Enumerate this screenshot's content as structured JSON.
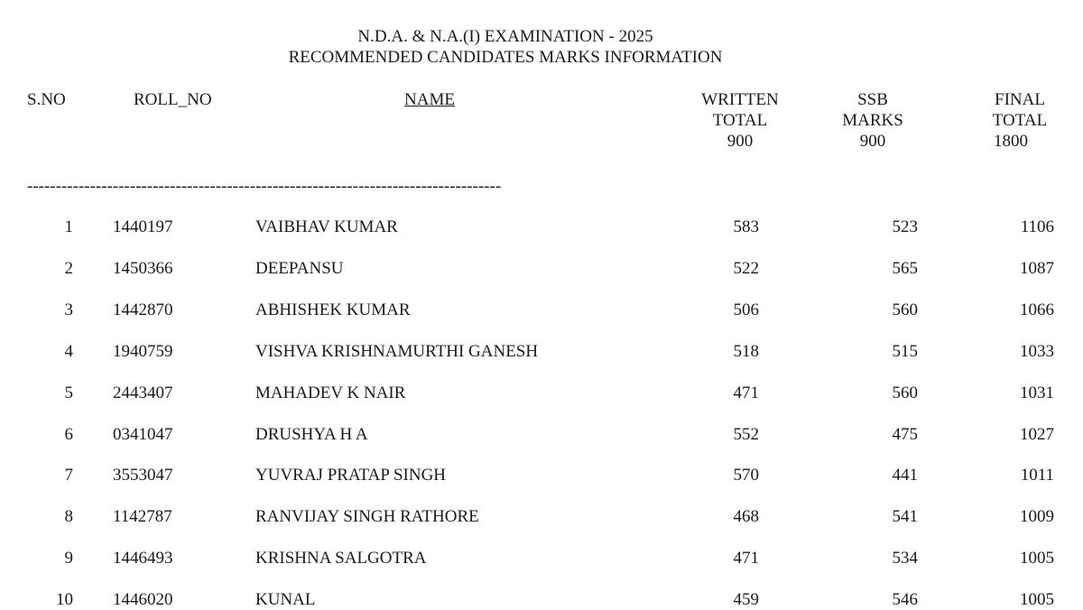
{
  "header": {
    "line1": "N.D.A. & N.A.(I) EXAMINATION - 2025",
    "line2": "RECOMMENDED CANDIDATES MARKS INFORMATION"
  },
  "columns": {
    "sno": "S.NO",
    "roll": "ROLL_NO",
    "name": "NAME",
    "written": [
      "WRITTEN",
      "TOTAL",
      "900"
    ],
    "ssb": [
      "SSB",
      "MARKS",
      "900"
    ],
    "final": [
      "FINAL",
      "TOTAL",
      "1800"
    ]
  },
  "separator": "--------------------------------------------------------------------------------------------------------",
  "rows": [
    {
      "sno": "1",
      "roll": "1440197",
      "name": "VAIBHAV KUMAR",
      "written": "583",
      "ssb": "523",
      "final": "1106"
    },
    {
      "sno": "2",
      "roll": "1450366",
      "name": "DEEPANSU",
      "written": "522",
      "ssb": "565",
      "final": "1087"
    },
    {
      "sno": "3",
      "roll": "1442870",
      "name": "ABHISHEK KUMAR",
      "written": "506",
      "ssb": "560",
      "final": "1066"
    },
    {
      "sno": "4",
      "roll": "1940759",
      "name": "VISHVA KRISHNAMURTHI GANESH",
      "written": "518",
      "ssb": "515",
      "final": "1033"
    },
    {
      "sno": "5",
      "roll": "2443407",
      "name": "MAHADEV K NAIR",
      "written": "471",
      "ssb": "560",
      "final": "1031"
    },
    {
      "sno": "6",
      "roll": "0341047",
      "name": "DRUSHYA H A",
      "written": "552",
      "ssb": "475",
      "final": "1027"
    },
    {
      "sno": "7",
      "roll": "3553047",
      "name": "YUVRAJ PRATAP SINGH",
      "written": "570",
      "ssb": "441",
      "final": "1011"
    },
    {
      "sno": "8",
      "roll": "1142787",
      "name": "RANVIJAY SINGH RATHORE",
      "written": "468",
      "ssb": "541",
      "final": "1009"
    },
    {
      "sno": "9",
      "roll": "1446493",
      "name": "KRISHNA SALGOTRA",
      "written": "471",
      "ssb": "534",
      "final": "1005"
    },
    {
      "sno": "10",
      "roll": "1446020",
      "name": "KUNAL",
      "written": "459",
      "ssb": "546",
      "final": "1005"
    }
  ]
}
